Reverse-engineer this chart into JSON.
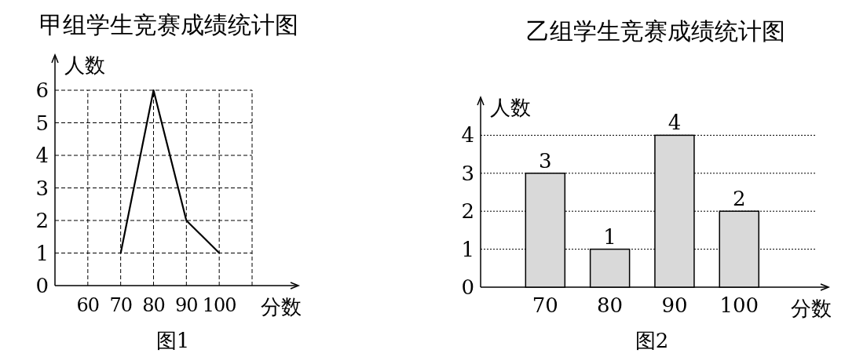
{
  "chart_data": [
    {
      "type": "line",
      "title": "甲组学生竞赛成绩统计图",
      "xlabel": "分数",
      "ylabel": "人数",
      "x": [
        70,
        80,
        90,
        100
      ],
      "values": [
        1,
        6,
        2,
        1
      ],
      "color": "#000000",
      "xlim": [
        50,
        110
      ],
      "ylim": [
        0,
        6
      ],
      "xticks": [
        60,
        70,
        80,
        90,
        100
      ],
      "yticks": [
        0,
        1,
        2,
        3,
        4,
        5,
        6
      ],
      "grid": true,
      "annotations": [
        "图1"
      ]
    },
    {
      "type": "bar",
      "title": "乙组学生竞赛成绩统计图",
      "xlabel": "分数",
      "ylabel": "人数",
      "categories": [
        "70",
        "80",
        "90",
        "100"
      ],
      "values": [
        3,
        1,
        4,
        2
      ],
      "color": "#d9d9d9",
      "ylim": [
        0,
        5
      ],
      "yticks": [
        0,
        1,
        2,
        3,
        4
      ],
      "grid": "y",
      "data_labels": true,
      "annotations": [
        "图2"
      ]
    }
  ]
}
